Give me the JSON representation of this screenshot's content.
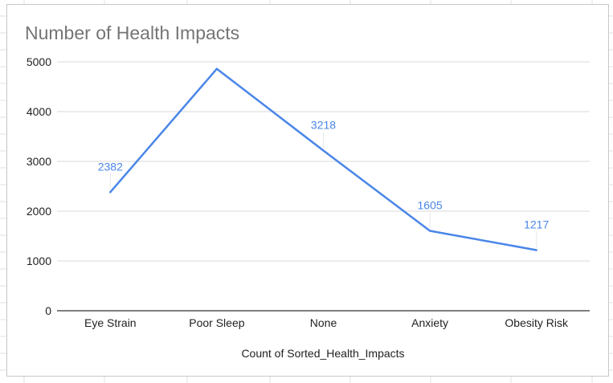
{
  "chart_data": {
    "type": "line",
    "title": "Number of Health Impacts",
    "xlabel": "Count of Sorted_Health_Impacts",
    "ylabel": "",
    "categories": [
      "Eye Strain",
      "Poor Sleep",
      "None",
      "Anxiety",
      "Obesity Risk"
    ],
    "series": [
      {
        "values": [
          2382,
          4860,
          3218,
          1605,
          1217
        ],
        "data_labels": [
          "2382",
          "",
          "3218",
          "1605",
          "1217"
        ],
        "color": "#4a86e8"
      }
    ],
    "ylim": [
      0,
      5000
    ],
    "yticks": [
      "0",
      "1000",
      "2000",
      "3000",
      "4000",
      "5000"
    ],
    "grid": true,
    "legend": "none"
  },
  "colors": {
    "title": "#757575",
    "gridline": "#d9d9d9",
    "baseline": "#333333",
    "sheet_grid": "#e2e2e2"
  }
}
